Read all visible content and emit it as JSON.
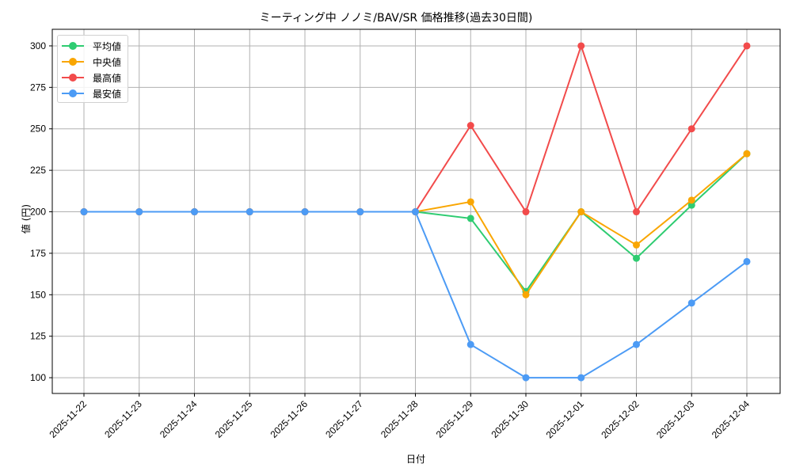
{
  "chart_data": {
    "type": "line",
    "title": "ミーティング中 ノノミ/BAV/SR 価格推移(過去30日間)",
    "xlabel": "日付",
    "ylabel": "値 (円)",
    "categories": [
      "2025-11-22",
      "2025-11-23",
      "2025-11-24",
      "2025-11-25",
      "2025-11-26",
      "2025-11-27",
      "2025-11-28",
      "2025-11-29",
      "2025-11-30",
      "2025-12-01",
      "2025-12-02",
      "2025-12-03",
      "2025-12-04"
    ],
    "series": [
      {
        "name": "平均値",
        "color": "#2ecc71",
        "values": [
          200,
          200,
          200,
          200,
          200,
          200,
          200,
          196,
          152,
          200,
          172,
          204,
          235
        ]
      },
      {
        "name": "中央値",
        "color": "#f9a602",
        "values": [
          200,
          200,
          200,
          200,
          200,
          200,
          200,
          206,
          150,
          200,
          180,
          207,
          235
        ]
      },
      {
        "name": "最高値",
        "color": "#f24b4b",
        "values": [
          200,
          200,
          200,
          200,
          200,
          200,
          200,
          252,
          200,
          300,
          200,
          250,
          300
        ]
      },
      {
        "name": "最安値",
        "color": "#4c9bf5",
        "values": [
          200,
          200,
          200,
          200,
          200,
          200,
          200,
          120,
          100,
          100,
          120,
          145,
          170
        ]
      }
    ],
    "yticks": [
      100,
      125,
      150,
      175,
      200,
      225,
      250,
      275,
      300
    ],
    "ylim": [
      90.5,
      310
    ],
    "grid": true,
    "legend_position": "upper left",
    "marker": "circle"
  }
}
